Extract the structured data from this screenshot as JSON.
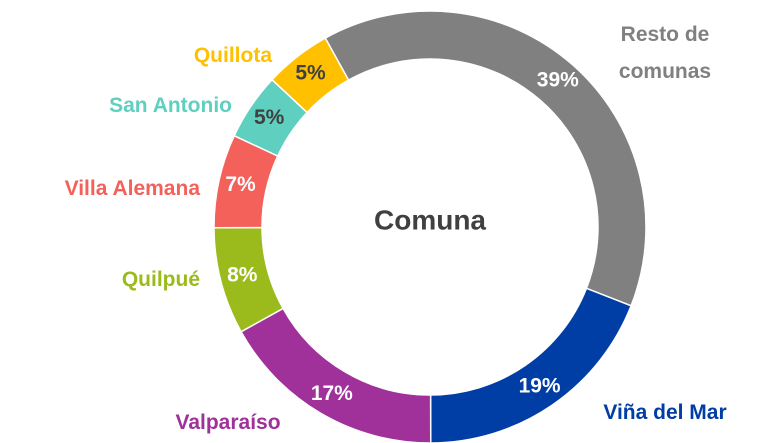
{
  "chart_data": {
    "type": "donut",
    "title": "Comuna",
    "categories": [
      "Resto de comunas",
      "Viña del Mar",
      "Valparaíso",
      "Quilpué",
      "Villa Alemana",
      "San Antonio",
      "Quillota"
    ],
    "values": [
      39,
      19,
      17,
      8,
      7,
      5,
      5
    ],
    "value_labels": [
      "39%",
      "19%",
      "17%",
      "8%",
      "7%",
      "5%",
      "5%"
    ],
    "colors": [
      "#808080",
      "#003da5",
      "#a0309a",
      "#9bbb1c",
      "#f4605a",
      "#5fcfc0",
      "#ffc000"
    ]
  }
}
